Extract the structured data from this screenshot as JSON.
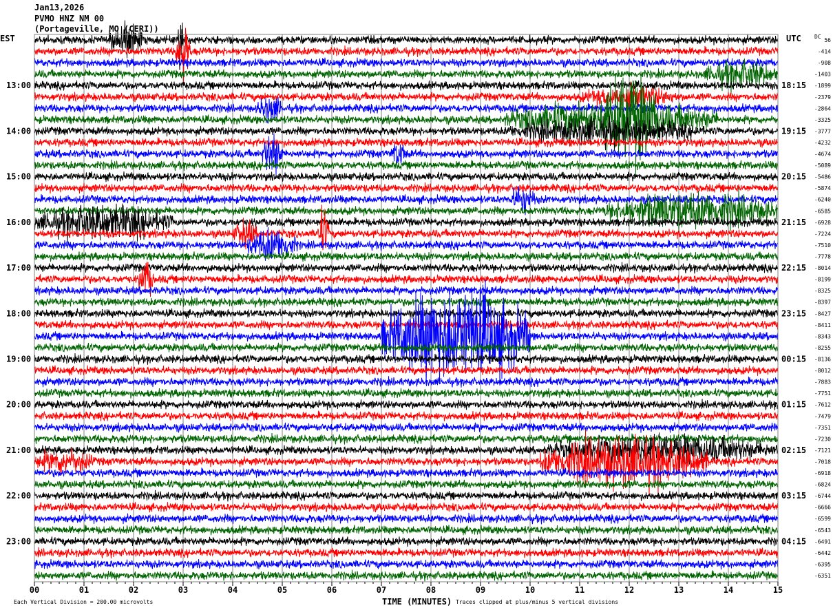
{
  "header": {
    "date": "Jan13,2026",
    "station": "PVMO HNZ NM 00",
    "location": "(Portageville, MO (CERI))"
  },
  "left_zone": "EST",
  "right_zone": "UTC",
  "dc_label": "DC",
  "colors": {
    "trace_cycle": [
      "#000000",
      "#ff0000",
      "#0000ff",
      "#006400"
    ],
    "grid": "#808080"
  },
  "chart_data": {
    "type": "line",
    "subtype": "helicorder",
    "xlabel": "TIME (MINUTES)",
    "xlim": [
      0,
      15
    ],
    "x_tick_labels": [
      "00",
      "01",
      "02",
      "03",
      "04",
      "05",
      "06",
      "07",
      "08",
      "09",
      "10",
      "11",
      "12",
      "13",
      "14",
      "15"
    ],
    "minor_ticks_per_minute": 6,
    "rows": 48,
    "rows_per_hour": 4,
    "left_hour_labels": [
      "13:00",
      "14:00",
      "15:00",
      "16:00",
      "17:00",
      "18:00",
      "19:00",
      "20:00",
      "21:00",
      "22:00",
      "23:00"
    ],
    "right_hour_labels": [
      "18:15",
      "19:15",
      "20:15",
      "21:15",
      "22:15",
      "23:15",
      "00:15",
      "01:15",
      "02:15",
      "03:15",
      "04:15"
    ],
    "row_offsets": [
      "56",
      "-414",
      "-908",
      "-1403",
      "-1899",
      "-2379",
      "-2864",
      "-3325",
      "-3777",
      "-4232",
      "-4674",
      "-5089",
      "-5486",
      "-5874",
      "-6240",
      "-6585",
      "-6928",
      "-7224",
      "-7510",
      "-7778",
      "-8014",
      "-8199",
      "-8325",
      "-8397",
      "-8427",
      "-8411",
      "-8343",
      "-8255",
      "-8136",
      "-8012",
      "-7883",
      "-7751",
      "-7612",
      "-7479",
      "-7351",
      "-7230",
      "-7121",
      "-7018",
      "-6918",
      "-6824",
      "-6744",
      "-6666",
      "-6599",
      "-6543",
      "-6491",
      "-6442",
      "-6395",
      "-6351"
    ],
    "clip_divisions": 5,
    "background_noise_divisions": 0.4,
    "events": [
      {
        "row": 0,
        "start_min": 1.5,
        "end_min": 2.2,
        "amp": 1.8
      },
      {
        "row": 0,
        "start_min": 2.9,
        "end_min": 3.0,
        "amp": 4
      },
      {
        "row": 1,
        "start_min": 2.85,
        "end_min": 3.15,
        "amp": 3
      },
      {
        "row": 3,
        "start_min": 13.5,
        "end_min": 15,
        "amp": 1.5
      },
      {
        "row": 5,
        "start_min": 11.0,
        "end_min": 13.0,
        "amp": 1.2
      },
      {
        "row": 6,
        "start_min": 4.5,
        "end_min": 5.0,
        "amp": 1.5
      },
      {
        "row": 7,
        "start_min": 11.4,
        "end_min": 12.6,
        "amp": 5
      },
      {
        "row": 7,
        "start_min": 9.5,
        "end_min": 13.8,
        "amp": 2
      },
      {
        "row": 8,
        "start_min": 9.5,
        "end_min": 13.5,
        "amp": 1.4
      },
      {
        "row": 10,
        "start_min": 4.6,
        "end_min": 5.0,
        "amp": 2.5
      },
      {
        "row": 10,
        "start_min": 7.2,
        "end_min": 7.5,
        "amp": 1.5
      },
      {
        "row": 14,
        "start_min": 9.6,
        "end_min": 10.1,
        "amp": 1.6
      },
      {
        "row": 15,
        "start_min": 11.5,
        "end_min": 15,
        "amp": 2
      },
      {
        "row": 16,
        "start_min": 0,
        "end_min": 2.8,
        "amp": 1.8
      },
      {
        "row": 17,
        "start_min": 4.0,
        "end_min": 4.5,
        "amp": 1.5
      },
      {
        "row": 17,
        "start_min": 5.7,
        "end_min": 5.95,
        "amp": 2.5
      },
      {
        "row": 18,
        "start_min": 4.3,
        "end_min": 5.3,
        "amp": 1.8
      },
      {
        "row": 21,
        "start_min": 2.1,
        "end_min": 2.4,
        "amp": 2
      },
      {
        "row": 26,
        "start_min": 7.0,
        "end_min": 10.0,
        "amp": 5
      },
      {
        "row": 26,
        "start_min": 7.5,
        "end_min": 9.5,
        "amp": 5
      },
      {
        "row": 36,
        "start_min": 10.3,
        "end_min": 15,
        "amp": 1.6
      },
      {
        "row": 37,
        "start_min": 0,
        "end_min": 1.2,
        "amp": 1.4
      },
      {
        "row": 37,
        "start_min": 10.2,
        "end_min": 13.6,
        "amp": 2.6
      }
    ]
  },
  "footer": {
    "division": "Each Vertical Division =  200.00 microvolts",
    "clip_note": "Traces clipped at plus/minus 5 vertical divisions"
  }
}
